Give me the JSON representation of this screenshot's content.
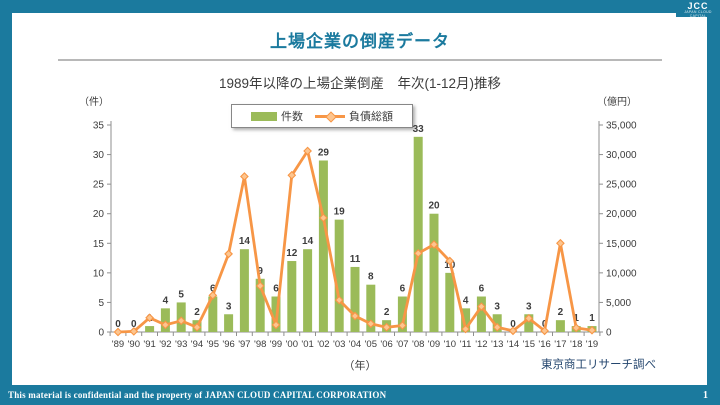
{
  "frame": {
    "accent_color": "#1b7a9e",
    "logo_text": "JCC",
    "logo_tagline": "JAPAN CLOUD CAPITAL",
    "page_title": "上場企業の倒産データ",
    "footer_text": "This material is confidential and the property of JAPAN CLOUD CAPITAL CORPORATION",
    "page_number": "1"
  },
  "chart_data": {
    "type": "bar",
    "combo": "bar+line",
    "title": "1989年以降の上場企業倒産　年次(1-12月)推移",
    "xlabel": "（年）",
    "source": "東京商工リサーチ調べ",
    "legend_position": "top",
    "grid": false,
    "bar_labels_shown": true,
    "colors": {
      "bar": "#9bbb59",
      "line": "#f79646",
      "marker_fill": "#fdc58f",
      "axis": "#8f8f8f",
      "label": "#3d3d3d"
    },
    "categories": [
      "'89",
      "'90",
      "'91",
      "'92",
      "'93",
      "'94",
      "'95",
      "'96",
      "'97",
      "'98",
      "'99",
      "'00",
      "'01",
      "'02",
      "'03",
      "'04",
      "'05",
      "'06",
      "'07",
      "'08",
      "'09",
      "'10",
      "'11",
      "'12",
      "'13",
      "'14",
      "'15",
      "'16",
      "'17",
      "'18",
      "'19"
    ],
    "left_axis": {
      "label": "（件）",
      "min": 0,
      "max": 35,
      "step": 5
    },
    "right_axis": {
      "label": "（億円）",
      "min": 0,
      "max": 35000,
      "step": 5000
    },
    "series": [
      {
        "name": "件数",
        "type": "bar",
        "axis": "left",
        "values": [
          0,
          0,
          1,
          4,
          5,
          2,
          6,
          3,
          14,
          9,
          6,
          12,
          14,
          29,
          19,
          11,
          8,
          2,
          6,
          33,
          20,
          10,
          4,
          6,
          3,
          0,
          3,
          0,
          2,
          1,
          1
        ]
      },
      {
        "name": "負債総額",
        "type": "line",
        "axis": "right",
        "marker": "diamond",
        "values": [
          0,
          100,
          2400,
          1200,
          1900,
          800,
          6200,
          13200,
          26300,
          7800,
          1200,
          26500,
          30600,
          19300,
          5400,
          2700,
          1400,
          800,
          1100,
          13300,
          14800,
          12000,
          500,
          4300,
          800,
          200,
          2300,
          200,
          15000,
          700,
          300
        ]
      }
    ]
  }
}
